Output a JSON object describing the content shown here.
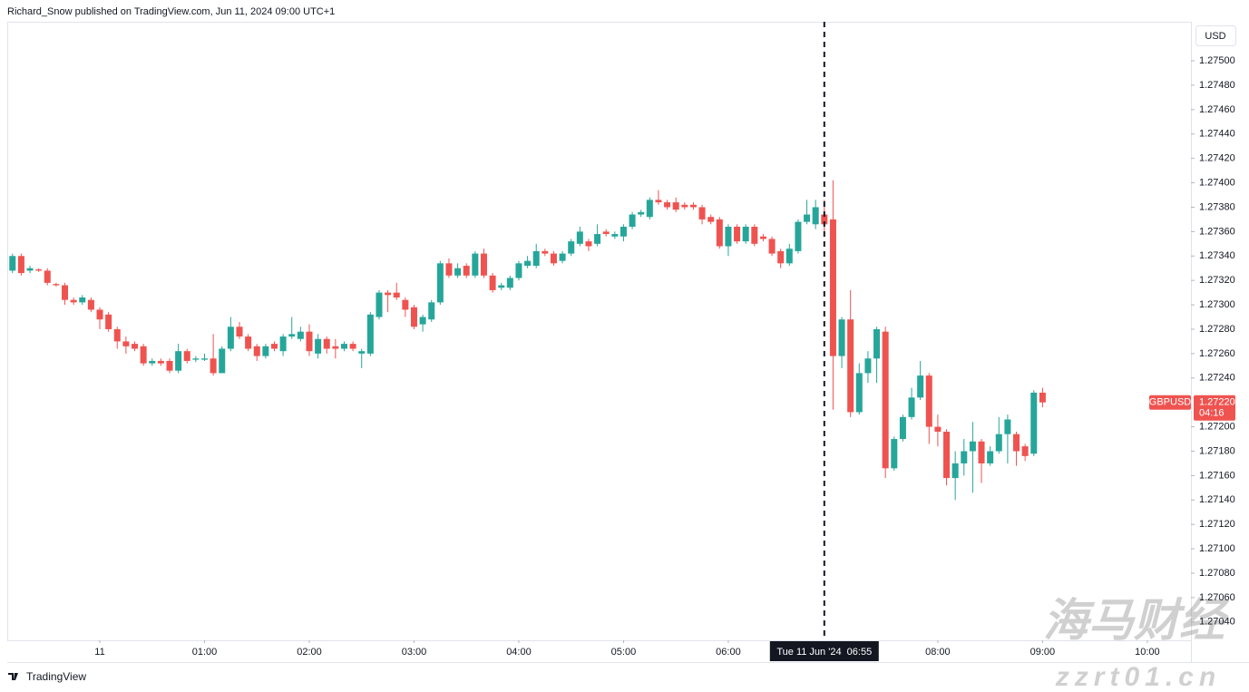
{
  "header": "Richard_Snow published on TradingView.com, Jun 11, 2024 09:00 UTC+1",
  "footer": "TradingView",
  "watermark": {
    "title": "海马财经",
    "site": "zzrt01.cn"
  },
  "chart_data": {
    "type": "candlestick",
    "currency": "USD",
    "up_color": "#26a69a",
    "down_color": "#ef5350",
    "grid": false,
    "x": [
      -50,
      -45,
      -40,
      -35,
      -30,
      -25,
      -20,
      -15,
      -10,
      -5,
      0,
      5,
      10,
      15,
      20,
      25,
      30,
      35,
      40,
      45,
      50,
      55,
      60,
      65,
      70,
      75,
      80,
      85,
      90,
      95,
      100,
      105,
      110,
      115,
      120,
      125,
      130,
      135,
      140,
      145,
      150,
      155,
      160,
      165,
      170,
      175,
      180,
      185,
      190,
      195,
      200,
      205,
      210,
      215,
      220,
      225,
      230,
      235,
      240,
      245,
      250,
      255,
      260,
      265,
      270,
      275,
      280,
      285,
      290,
      295,
      300,
      305,
      310,
      315,
      320,
      325,
      330,
      335,
      340,
      345,
      350,
      355,
      360,
      365,
      370,
      375,
      380,
      385,
      390,
      395,
      400,
      405,
      410,
      415,
      420,
      425,
      430,
      435,
      440,
      445,
      450,
      455,
      460,
      465,
      470,
      475,
      480,
      485,
      490,
      495,
      500,
      505,
      510,
      515,
      520,
      525,
      530,
      535,
      540
    ],
    "open": [
      1.27328,
      1.2734,
      1.27328,
      1.27329,
      1.27328,
      1.27317,
      1.27316,
      1.27304,
      1.27302,
      1.27304,
      1.27296,
      1.27292,
      1.2728,
      1.2727,
      1.27268,
      1.27266,
      1.27252,
      1.27254,
      1.27254,
      1.27246,
      1.27262,
      1.27255,
      1.27255,
      1.27256,
      1.27244,
      1.27264,
      1.27282,
      1.27274,
      1.27266,
      1.27258,
      1.27268,
      1.27262,
      1.27274,
      1.27272,
      1.27278,
      1.2726,
      1.27272,
      1.27266,
      1.27264,
      1.27268,
      1.2726,
      1.2726,
      1.2729,
      1.2731,
      1.2731,
      1.27304,
      1.27298,
      1.27284,
      1.27288,
      1.27302,
      1.27334,
      1.27324,
      1.27332,
      1.27324,
      1.27342,
      1.27324,
      1.27314,
      1.27314,
      1.27322,
      1.27332,
      1.27332,
      1.27344,
      1.27342,
      1.27336,
      1.27342,
      1.2735,
      1.27352,
      1.2735,
      1.2736,
      1.27356,
      1.27356,
      1.27364,
      1.27374,
      1.27372,
      1.27386,
      1.27384,
      1.27384,
      1.27382,
      1.27382,
      1.2738,
      1.27372,
      1.2737,
      1.27348,
      1.27364,
      1.27352,
      1.27364,
      1.27356,
      1.27354,
      1.27344,
      1.27334,
      1.27344,
      1.27368,
      1.27366,
      1.27374,
      1.2737,
      1.27258,
      1.27288,
      1.27212,
      1.27244,
      1.27256,
      1.27278,
      1.27166,
      1.2719,
      1.27208,
      1.27224,
      1.27242,
      1.272,
      1.27196,
      1.27158,
      1.2717,
      1.2718,
      1.27188,
      1.2717,
      1.2718,
      1.27194,
      1.27194,
      1.27184,
      1.27178,
      1.27228
    ],
    "high": [
      1.27342,
      1.27342,
      1.27332,
      1.2733,
      1.2733,
      1.27318,
      1.27318,
      1.27306,
      1.27308,
      1.27306,
      1.27298,
      1.27294,
      1.27282,
      1.27274,
      1.2727,
      1.27268,
      1.27256,
      1.27256,
      1.27256,
      1.27268,
      1.27264,
      1.27258,
      1.2726,
      1.27276,
      1.27266,
      1.2729,
      1.27286,
      1.27276,
      1.27268,
      1.27268,
      1.2727,
      1.27276,
      1.2729,
      1.27282,
      1.27284,
      1.27276,
      1.27274,
      1.27272,
      1.2727,
      1.2727,
      1.27264,
      1.27294,
      1.27312,
      1.27312,
      1.27318,
      1.27306,
      1.273,
      1.27292,
      1.27304,
      1.27336,
      1.27338,
      1.27334,
      1.27334,
      1.27344,
      1.27346,
      1.27326,
      1.27318,
      1.27324,
      1.27336,
      1.2734,
      1.2735,
      1.27346,
      1.27344,
      1.27344,
      1.27354,
      1.27364,
      1.27354,
      1.27366,
      1.27362,
      1.2736,
      1.27366,
      1.27376,
      1.27378,
      1.27388,
      1.27394,
      1.27386,
      1.27388,
      1.27384,
      1.27384,
      1.27382,
      1.27374,
      1.27372,
      1.27366,
      1.27366,
      1.27366,
      1.27366,
      1.27358,
      1.27356,
      1.27346,
      1.2735,
      1.2737,
      1.27386,
      1.27386,
      1.27386,
      1.27402,
      1.2729,
      1.27312,
      1.27252,
      1.27262,
      1.27282,
      1.27282,
      1.27192,
      1.2721,
      1.27232,
      1.27254,
      1.27244,
      1.2721,
      1.27198,
      1.2718,
      1.2719,
      1.27204,
      1.2719,
      1.27184,
      1.27208,
      1.2721,
      1.27196,
      1.27186,
      1.2723,
      1.27232
    ],
    "low": [
      1.27326,
      1.27324,
      1.27326,
      1.27327,
      1.27316,
      1.27315,
      1.273,
      1.273,
      1.273,
      1.27294,
      1.2728,
      1.27278,
      1.27264,
      1.2726,
      1.27262,
      1.2725,
      1.2725,
      1.2725,
      1.27244,
      1.27244,
      1.27252,
      1.27253,
      1.27254,
      1.27242,
      1.27244,
      1.27262,
      1.27272,
      1.27262,
      1.27254,
      1.27256,
      1.27262,
      1.27258,
      1.27272,
      1.2727,
      1.27258,
      1.27256,
      1.2726,
      1.27256,
      1.27262,
      1.27262,
      1.27248,
      1.27258,
      1.27288,
      1.27294,
      1.27304,
      1.2729,
      1.2728,
      1.27278,
      1.27286,
      1.273,
      1.27322,
      1.27322,
      1.27322,
      1.27322,
      1.27322,
      1.2731,
      1.27312,
      1.27312,
      1.2732,
      1.2733,
      1.2733,
      1.2734,
      1.27332,
      1.27334,
      1.2734,
      1.27348,
      1.27344,
      1.27348,
      1.27356,
      1.27354,
      1.27352,
      1.27362,
      1.27372,
      1.2737,
      1.27382,
      1.27378,
      1.27376,
      1.27378,
      1.27378,
      1.27366,
      1.27366,
      1.27346,
      1.2734,
      1.2735,
      1.2735,
      1.27348,
      1.27352,
      1.2734,
      1.2733,
      1.27332,
      1.27342,
      1.27366,
      1.27362,
      1.2736,
      1.27214,
      1.27248,
      1.27208,
      1.2721,
      1.27236,
      1.27236,
      1.27158,
      1.27164,
      1.27188,
      1.27206,
      1.27222,
      1.27186,
      1.27184,
      1.27152,
      1.2714,
      1.2716,
      1.27146,
      1.27154,
      1.27168,
      1.27178,
      1.2717,
      1.27168,
      1.27172,
      1.27176,
      1.27216
    ],
    "close": [
      1.2734,
      1.27326,
      1.2733,
      1.27328,
      1.27318,
      1.27316,
      1.27304,
      1.27302,
      1.27306,
      1.27296,
      1.27288,
      1.2728,
      1.2727,
      1.27266,
      1.27264,
      1.27252,
      1.27254,
      1.27252,
      1.27246,
      1.27262,
      1.27254,
      1.27256,
      1.27256,
      1.27244,
      1.27264,
      1.27282,
      1.27274,
      1.27264,
      1.27258,
      1.27266,
      1.27264,
      1.27274,
      1.27276,
      1.27278,
      1.27262,
      1.27272,
      1.27264,
      1.27264,
      1.27268,
      1.27264,
      1.27262,
      1.27292,
      1.2731,
      1.27308,
      1.27306,
      1.27296,
      1.27282,
      1.2729,
      1.27302,
      1.27334,
      1.27324,
      1.2733,
      1.27324,
      1.27342,
      1.27324,
      1.27312,
      1.27316,
      1.27322,
      1.27334,
      1.27336,
      1.27344,
      1.27342,
      1.27334,
      1.27342,
      1.27352,
      1.2736,
      1.27348,
      1.27358,
      1.27358,
      1.27358,
      1.27364,
      1.27374,
      1.27376,
      1.27386,
      1.27384,
      1.2738,
      1.27378,
      1.2738,
      1.2738,
      1.2737,
      1.27368,
      1.27348,
      1.27364,
      1.27352,
      1.27364,
      1.2735,
      1.27354,
      1.27342,
      1.27334,
      1.27346,
      1.27368,
      1.27374,
      1.2738,
      1.27366,
      1.27258,
      1.27288,
      1.27212,
      1.27244,
      1.27256,
      1.2728,
      1.27166,
      1.2719,
      1.27208,
      1.27224,
      1.27242,
      1.272,
      1.27196,
      1.27158,
      1.2717,
      1.2718,
      1.27188,
      1.2717,
      1.2718,
      1.27194,
      1.27206,
      1.2718,
      1.27176,
      1.27228,
      1.2722
    ],
    "xlim": [
      -53,
      625
    ],
    "xticks": [
      {
        "value": 0,
        "label": "11"
      },
      {
        "value": 60,
        "label": "01:00"
      },
      {
        "value": 120,
        "label": "02:00"
      },
      {
        "value": 180,
        "label": "03:00"
      },
      {
        "value": 240,
        "label": "04:00"
      },
      {
        "value": 300,
        "label": "05:00"
      },
      {
        "value": 360,
        "label": "06:00"
      },
      {
        "value": 480,
        "label": "08:00"
      },
      {
        "value": 540,
        "label": "09:00"
      },
      {
        "value": 600,
        "label": "10:00"
      }
    ],
    "ylim": [
      1.27025,
      1.27532
    ],
    "yticks": [
      {
        "value": 1.2704,
        "label": "1.27040"
      },
      {
        "value": 1.2706,
        "label": "1.27060"
      },
      {
        "value": 1.2708,
        "label": "1.27080"
      },
      {
        "value": 1.271,
        "label": "1.27100"
      },
      {
        "value": 1.2712,
        "label": "1.27120"
      },
      {
        "value": 1.2714,
        "label": "1.27140"
      },
      {
        "value": 1.2716,
        "label": "1.27160"
      },
      {
        "value": 1.2718,
        "label": "1.27180"
      },
      {
        "value": 1.272,
        "label": "1.27200"
      },
      {
        "value": 1.2724,
        "label": "1.27240"
      },
      {
        "value": 1.2726,
        "label": "1.27260"
      },
      {
        "value": 1.2728,
        "label": "1.27280"
      },
      {
        "value": 1.273,
        "label": "1.27300"
      },
      {
        "value": 1.2732,
        "label": "1.27320"
      },
      {
        "value": 1.2734,
        "label": "1.27340"
      },
      {
        "value": 1.2736,
        "label": "1.27360"
      },
      {
        "value": 1.2738,
        "label": "1.27380"
      },
      {
        "value": 1.274,
        "label": "1.27400"
      },
      {
        "value": 1.2742,
        "label": "1.27420"
      },
      {
        "value": 1.2744,
        "label": "1.27440"
      },
      {
        "value": 1.2746,
        "label": "1.27460"
      },
      {
        "value": 1.2748,
        "label": "1.27480"
      },
      {
        "value": 1.275,
        "label": "1.27500"
      }
    ],
    "last_price": {
      "symbol": "GBPUSD",
      "value": 1.2722,
      "label": "1.27220",
      "countdown": "04:16"
    },
    "crosshair": {
      "x": 415,
      "label": "Tue 11 Jun '24  06:55"
    }
  }
}
